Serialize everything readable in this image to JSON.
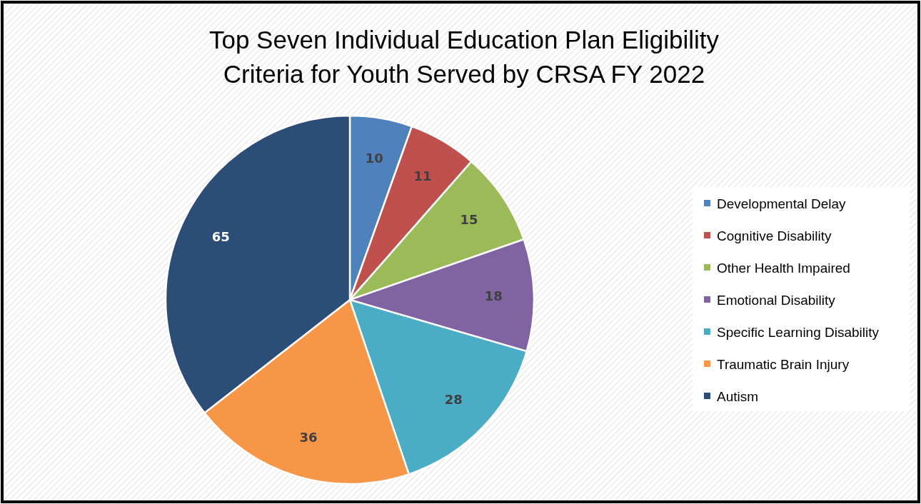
{
  "chart_data": {
    "type": "pie",
    "title": "Top Seven Individual Education Plan Eligibility Criteria for Youth Served by CRSA FY 2022",
    "categories": [
      "Developmental Delay",
      "Cognitive Disability",
      "Other Health Impaired",
      "Emotional Disability",
      "Specific Learning Disability",
      "Traumatic Brain Injury",
      "Autism"
    ],
    "values": [
      10,
      11,
      15,
      18,
      28,
      36,
      65
    ],
    "colors": [
      "#4f81bd",
      "#c0504d",
      "#9bbb59",
      "#8064a2",
      "#4bacc6",
      "#f79646",
      "#2c4d75"
    ],
    "data_labels": true,
    "legend": "right"
  }
}
